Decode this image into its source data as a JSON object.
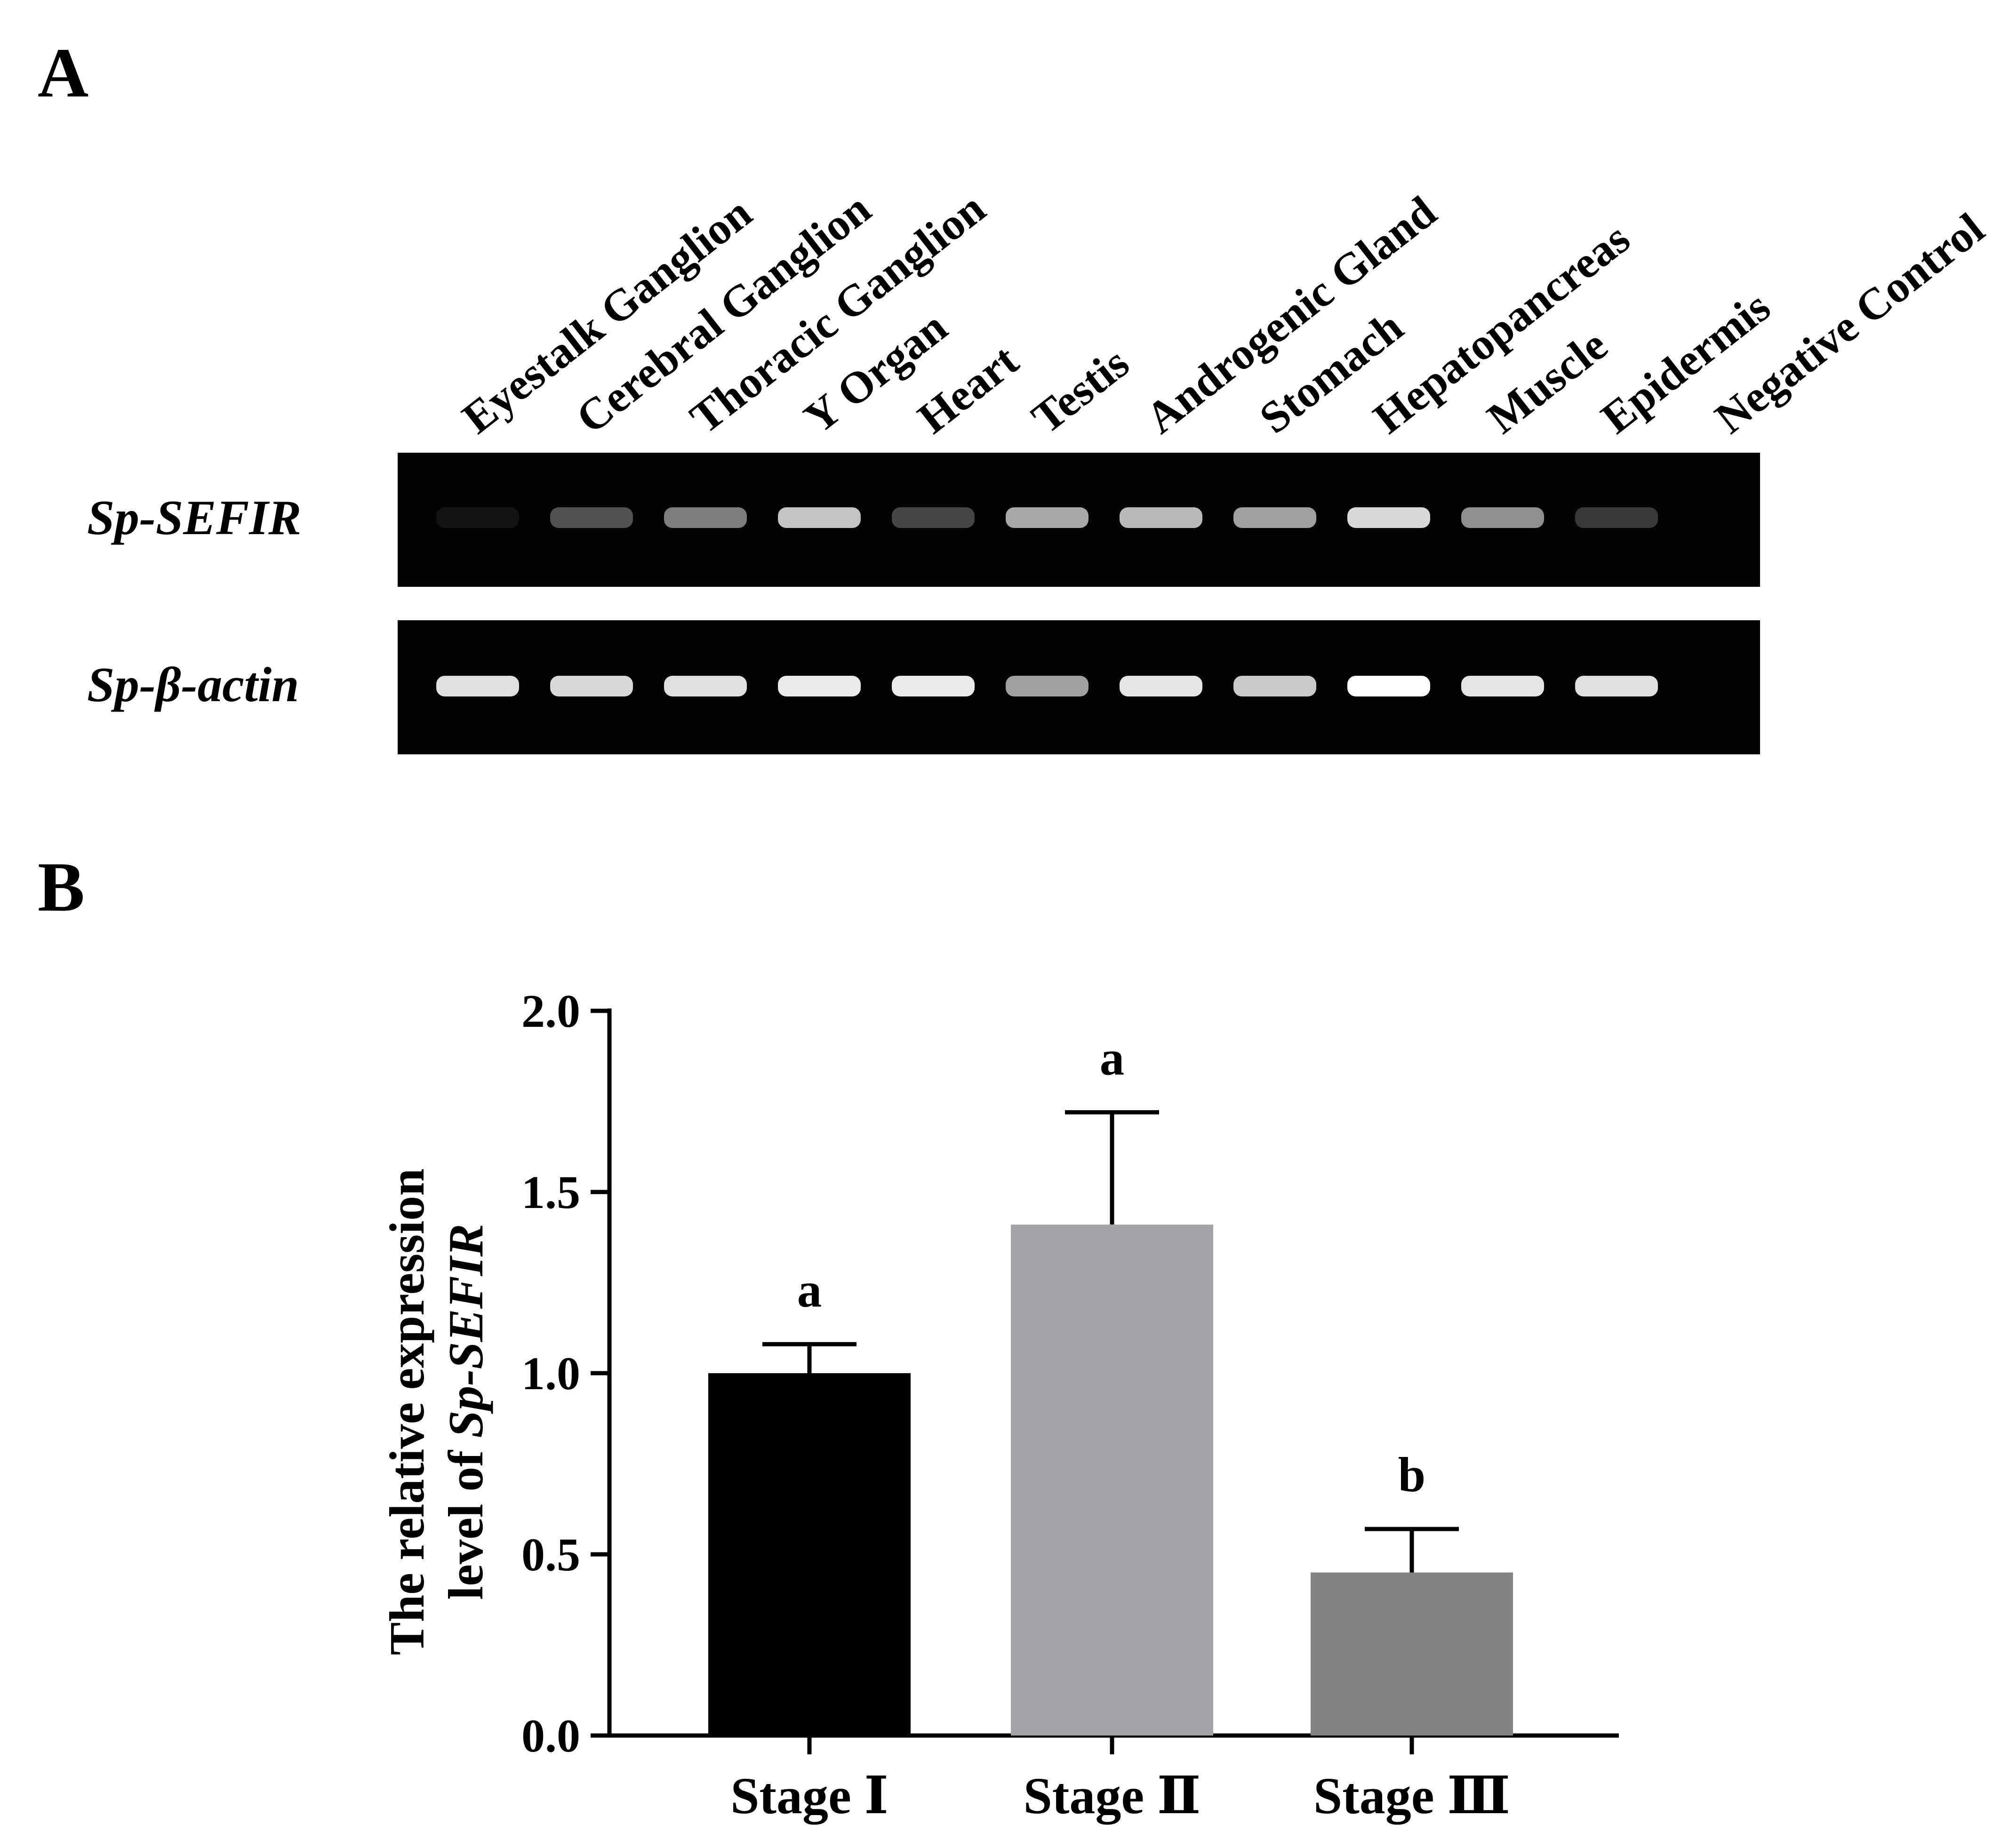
{
  "panels": {
    "a_label": "A",
    "b_label": "B"
  },
  "gel": {
    "lanes": [
      "Eyestalk Ganglion",
      "Cerebral Ganglion",
      "Thoracic Ganglion",
      "Y Organ",
      "Heart",
      "Testis",
      "Androgenic Gland",
      "Stomach",
      "Hepatopancreas",
      "Muscle",
      "Epidermis",
      "Negative Control"
    ],
    "rows": [
      {
        "label": "Sp-SEFIR",
        "intensities": [
          0.03,
          0.35,
          0.5,
          0.72,
          0.3,
          0.62,
          0.68,
          0.6,
          0.82,
          0.55,
          0.25,
          0.0
        ]
      },
      {
        "label": "Sp-β-actin",
        "intensities": [
          0.85,
          0.82,
          0.85,
          0.9,
          0.9,
          0.6,
          0.88,
          0.75,
          1.0,
          0.88,
          0.85,
          0.0
        ]
      }
    ]
  },
  "chart_data": {
    "type": "bar",
    "categories": [
      "Stage Ⅰ",
      "Stage Ⅱ",
      "Stage Ⅲ"
    ],
    "values": [
      1.0,
      1.41,
      0.45
    ],
    "error_bars": [
      0.08,
      0.31,
      0.12
    ],
    "significance": [
      "a",
      "a",
      "b"
    ],
    "colors": [
      "#000000",
      "#a3a3a7",
      "#828282"
    ],
    "ylabel_line1": "The relative expression",
    "ylabel_line2_prefix": "level of ",
    "ylabel_line2_gene": "Sp-SEFIR",
    "xlabel": "",
    "ylim": [
      0,
      2.0
    ],
    "yticks": [
      "0.0",
      "0.5",
      "1.0",
      "1.5",
      "2.0"
    ],
    "ytick_values": [
      0,
      0.5,
      1.0,
      1.5,
      2.0
    ],
    "grid": false
  }
}
